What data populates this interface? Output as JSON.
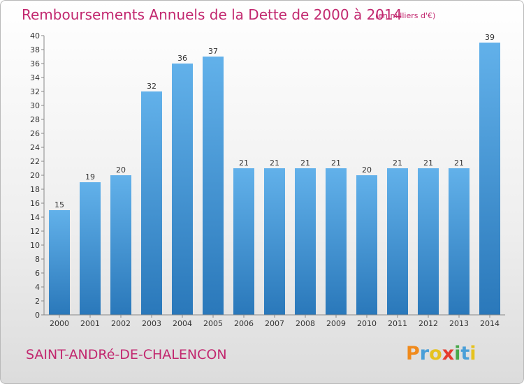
{
  "title": "Remboursements Annuels de la Dette de 2000 à 2014",
  "subtitle": "(en milliers d'€)",
  "commune": "SAINT-ANDRé-DE-CHALENCON",
  "logo": {
    "letters": [
      "P",
      "r",
      "o",
      "x",
      "i",
      "t",
      "i"
    ],
    "colors": [
      "#f08a1c",
      "#4a9fd8",
      "#e6c21f",
      "#e63b2e",
      "#48a84a",
      "#4a9fd8",
      "#e6c21f"
    ]
  },
  "colors": {
    "bar_light": "#5aaae6",
    "bar_dark": "#2f7fc0",
    "accent": "#c2286f"
  },
  "chart_data": {
    "type": "bar",
    "categories": [
      "2000",
      "2001",
      "2002",
      "2003",
      "2004",
      "2005",
      "2006",
      "2007",
      "2008",
      "2009",
      "2010",
      "2011",
      "2012",
      "2013",
      "2014"
    ],
    "values": [
      15,
      19,
      20,
      32,
      36,
      37,
      21,
      21,
      21,
      21,
      20,
      21,
      21,
      21,
      39
    ],
    "data_labels": [
      "15",
      "19",
      "20",
      "32",
      "36",
      "37",
      "21",
      "21",
      "21",
      "21",
      "20",
      "21",
      "21",
      "21",
      "39"
    ],
    "yticks": [
      "0",
      "2",
      "4",
      "6",
      "8",
      "10",
      "12",
      "14",
      "16",
      "18",
      "20",
      "22",
      "24",
      "26",
      "28",
      "30",
      "32",
      "34",
      "36",
      "38",
      "40"
    ],
    "ylim": [
      0,
      40
    ],
    "grid": false,
    "xlabel": "",
    "ylabel": ""
  }
}
